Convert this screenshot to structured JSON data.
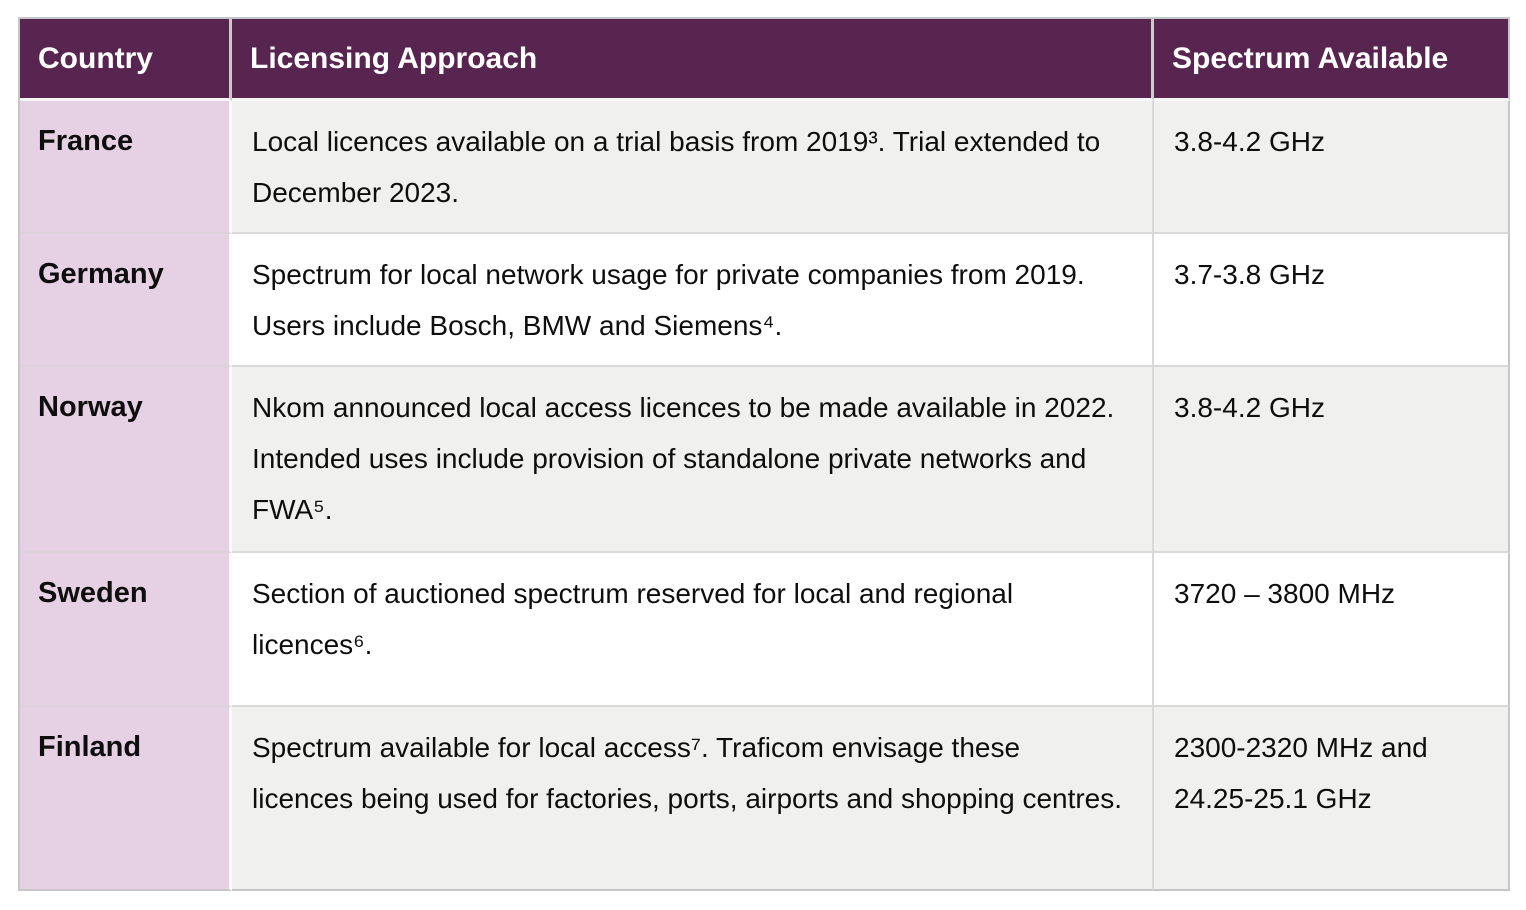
{
  "colors": {
    "header_bg": "#57254F",
    "header_text": "#FFFFFF",
    "country_column_bg": "#E6D0E3",
    "row_shaded_bg": "#F0F0EF",
    "row_plain_bg": "#FFFFFF",
    "border": "#D9D9D9",
    "body_text": "#0E0E0E"
  },
  "table": {
    "columns": [
      {
        "label": "Country"
      },
      {
        "label": "Licensing Approach"
      },
      {
        "label": "Spectrum Available"
      }
    ],
    "rows": [
      {
        "country": "France",
        "approach": "Local licences available on a trial basis from 2019³. Trial extended to December 2023.",
        "spectrum": "3.8-4.2 GHz"
      },
      {
        "country": "Germany",
        "approach": "Spectrum for local network usage for private companies from 2019. Users include Bosch, BMW and Siemens⁴.",
        "spectrum": "3.7-3.8 GHz"
      },
      {
        "country": "Norway",
        "approach": "Nkom announced local access licences to be made available in 2022. Intended uses include provision of standalone private networks and FWA⁵.",
        "spectrum": "3.8-4.2 GHz"
      },
      {
        "country": "Sweden",
        "approach": "Section of auctioned spectrum reserved for local and regional licences⁶.",
        "spectrum": "3720 – 3800 MHz"
      },
      {
        "country": "Finland",
        "approach": "Spectrum available for local access⁷. Traficom envisage these licences being used for factories, ports, airports and shopping centres.",
        "spectrum": "2300-2320 MHz and 24.25-25.1 GHz"
      }
    ]
  }
}
